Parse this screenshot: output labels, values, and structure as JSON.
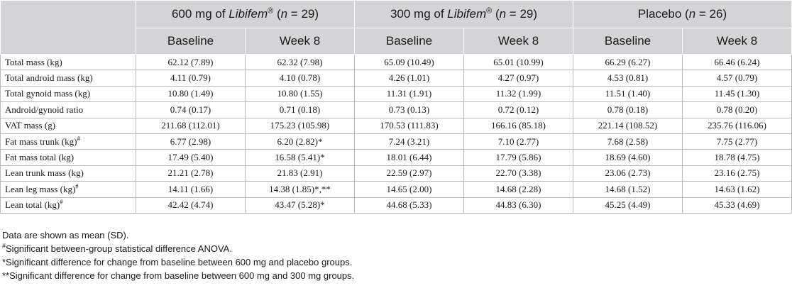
{
  "groups": [
    {
      "pre": "600 mg of ",
      "brand": "Libifem",
      "reg": "®",
      "post_open": " (",
      "n": "n",
      "post_close": " = 29)"
    },
    {
      "pre": "300 mg of ",
      "brand": "Libifem",
      "reg": "®",
      "post_open": " (",
      "n": "n",
      "post_close": " = 29)"
    },
    {
      "pre": "Placebo",
      "brand": "",
      "reg": "",
      "post_open": " (",
      "n": "n",
      "post_close": " = 26)"
    }
  ],
  "subheaders": [
    "Baseline",
    "Week 8",
    "Baseline",
    "Week 8",
    "Baseline",
    "Week 8"
  ],
  "rows": [
    {
      "label": "Total mass (kg)",
      "sup": "",
      "values": [
        "62.12 (7.89)",
        "62.32 (7.98)",
        "65.09 (10.49)",
        "65.01 (10.99)",
        "66.29 (6.27)",
        "66.46 (6.24)"
      ]
    },
    {
      "label": "Total android mass (kg)",
      "sup": "",
      "values": [
        "4.11 (0.79)",
        "4.10 (0.78)",
        "4.26 (1.01)",
        "4.27 (0.97)",
        "4.53 (0.81)",
        "4.57 (0.79)"
      ]
    },
    {
      "label": "Total gynoid mass (kg)",
      "sup": "",
      "values": [
        "10.80 (1.49)",
        "10.80 (1.55)",
        "11.31 (1.91)",
        "11.32 (1.99)",
        "11.51 (1.40)",
        "11.45 (1.30)"
      ]
    },
    {
      "label": "Android/gynoid ratio",
      "sup": "",
      "values": [
        "0.74 (0.17)",
        "0.71 (0.18)",
        "0.73 (0.13)",
        "0.72 (0.12)",
        "0.78 (0.18)",
        "0.78 (0.20)"
      ]
    },
    {
      "label": "VAT mass (g)",
      "sup": "",
      "values": [
        "211.68 (112.01)",
        "175.23 (105.98)",
        "170.53 (111.83)",
        "166.16 (85.18)",
        "221.14 (108.52)",
        "235.76 (116.06)"
      ]
    },
    {
      "label": "Fat mass trunk (kg)",
      "sup": "#",
      "values": [
        "6.77 (2.98)",
        "6.20 (2.82)*",
        "7.24 (3.21)",
        "7.10 (2.77)",
        "7.68 (2.58)",
        "7.75 (2.77)"
      ]
    },
    {
      "label": "Fat mass total (kg)",
      "sup": "",
      "values": [
        "17.49 (5.40)",
        "16.58 (5.41)*",
        "18.01 (6.44)",
        "17.79 (5.86)",
        "18.69 (4.60)",
        "18.78 (4.75)"
      ]
    },
    {
      "label": "Lean trunk mass (kg)",
      "sup": "",
      "values": [
        "21.21 (2.78)",
        "21.83 (2.91)",
        "22.59 (2.97)",
        "22.70 (3.38)",
        "23.06 (2.73)",
        "23.16 (2.75)"
      ]
    },
    {
      "label": "Lean leg mass (kg)",
      "sup": "#",
      "values": [
        "14.11 (1.66)",
        "14.38 (1.85)*,**",
        "14.65 (2.00)",
        "14.68 (2.28)",
        "14.68 (1.52)",
        "14.63 (1.62)"
      ]
    },
    {
      "label": "Lean total (kg)",
      "sup": "#",
      "values": [
        "42.42 (4.74)",
        "43.47 (5.28)*",
        "44.68 (5.33)",
        "44.83 (6.30)",
        "45.25 (4.49)",
        "45.33 (4.69)"
      ]
    }
  ],
  "notes": [
    {
      "sup": "",
      "text": "Data are shown as mean (SD)."
    },
    {
      "sup": "#",
      "text": "Significant between-group statistical difference ANOVA."
    },
    {
      "sup": "",
      "text": "*Significant difference for change from baseline between 600 mg and placebo groups."
    },
    {
      "sup": "",
      "text": "**Significant difference for change from baseline between 600 mg and 300 mg groups."
    }
  ]
}
